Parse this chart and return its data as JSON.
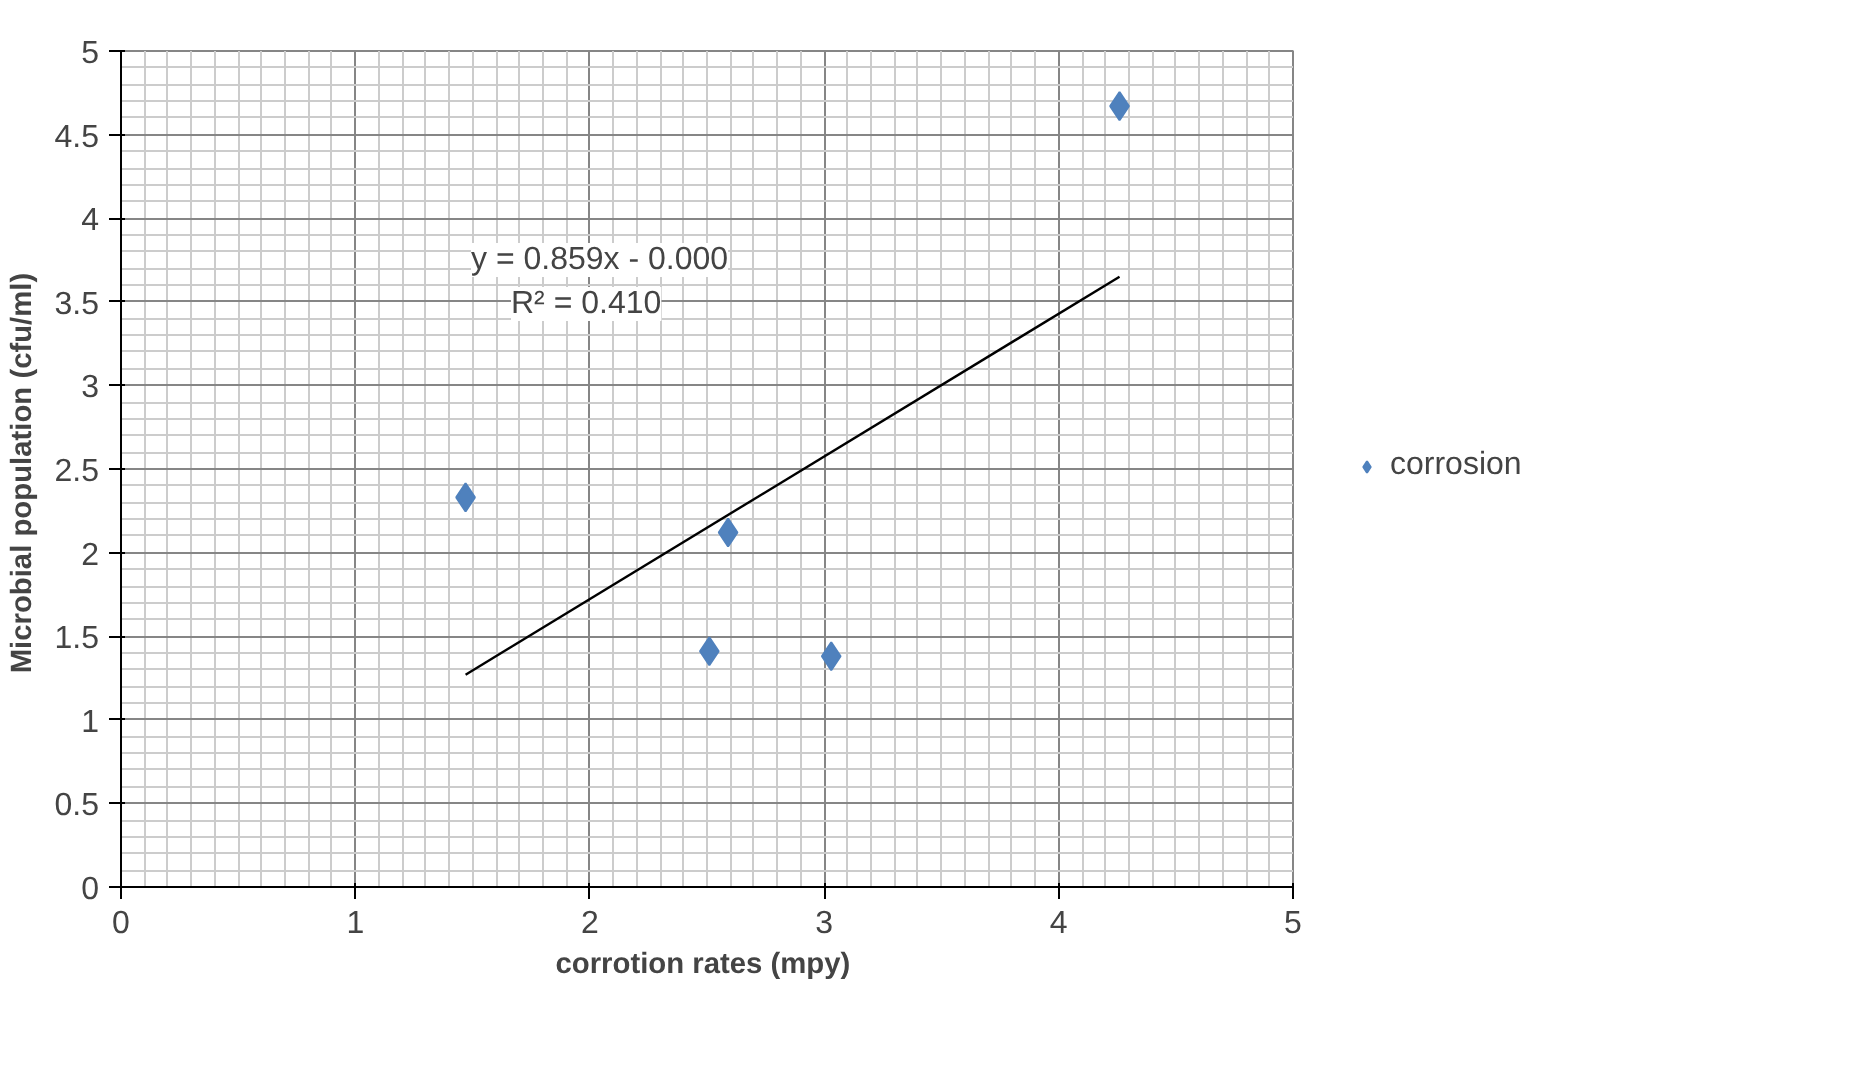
{
  "chart_data": {
    "type": "scatter",
    "xlabel": "corrotion rates  (mpy)",
    "ylabel": "Microbial population  (cfu/ml)",
    "xlim": [
      0,
      5
    ],
    "xticks": [
      0,
      1,
      2,
      3,
      4,
      5
    ],
    "ylim": [
      0,
      5
    ],
    "yticks": [
      0,
      0.5,
      1,
      1.5,
      2,
      2.5,
      3,
      3.5,
      4,
      4.5,
      5
    ],
    "grid": true,
    "legend": "right",
    "marker": "diamond",
    "series": [
      {
        "name": "corrosion",
        "color": "#4f81bd",
        "x": [
          1.47,
          2.59,
          2.51,
          3.03,
          4.26
        ],
        "values": [
          2.33,
          2.12,
          1.41,
          1.38,
          4.67
        ]
      },
      {
        "type": "line",
        "color": "#000000",
        "x": [
          1.47,
          4.26
        ],
        "values": [
          1.27,
          3.65
        ],
        "line_style": "solid",
        "marker": "none"
      }
    ],
    "annotations": [
      "y = 0.859x - 0.000",
      "R² = 0.410"
    ]
  }
}
